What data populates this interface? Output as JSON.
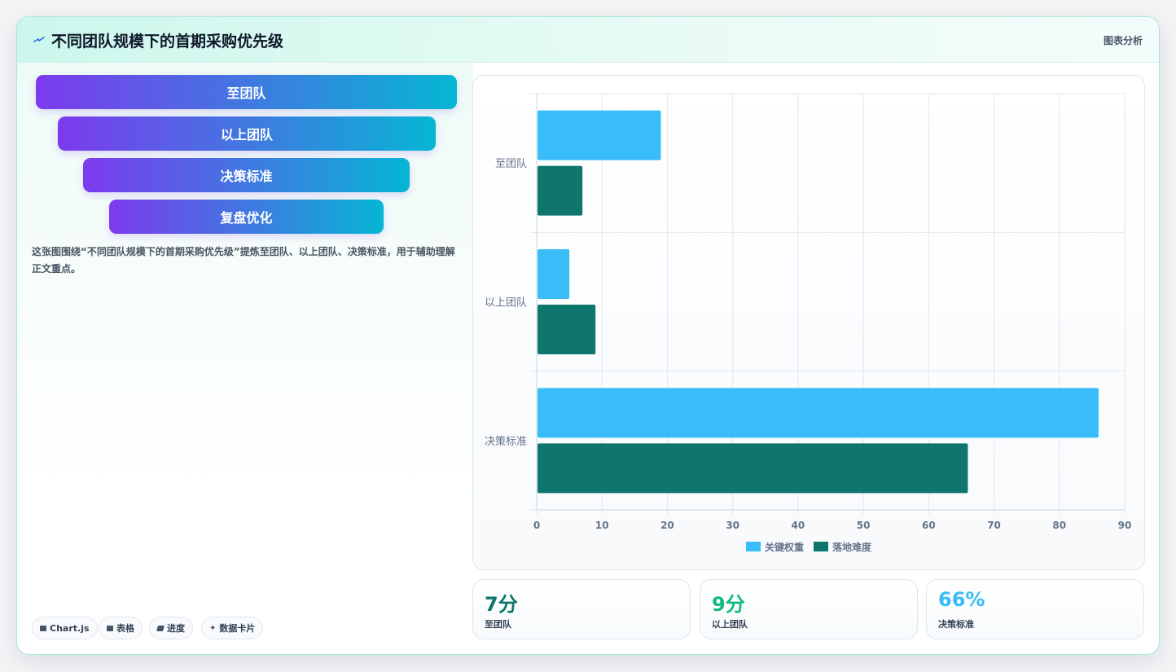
{
  "header": {
    "title": "不同团队规模下的首期采购优先级",
    "right_label": "图表分析",
    "icon": "bolt-icon"
  },
  "funnel": {
    "items": [
      "至团队",
      "以上团队",
      "决策标准",
      "复盘优化"
    ],
    "colors": {
      "start": "#7c3aed",
      "end": "#06b6d4"
    }
  },
  "description": "这张图围绕“不同团队规模下的首期采购优先级”提炼至团队、以上团队、决策标准，用于辅助理解正文重点。",
  "tags": [
    {
      "label": "Chart.js",
      "icon": "chart-icon"
    },
    {
      "label": "表格",
      "icon": "table-icon"
    },
    {
      "label": "进度",
      "icon": "progress-icon"
    },
    {
      "label": "数据卡片",
      "icon": "sparkle-icon"
    }
  ],
  "chart_data": {
    "type": "bar",
    "orientation": "horizontal",
    "categories": [
      "至团队",
      "以上团队",
      "决策标准"
    ],
    "series": [
      {
        "name": "关键权重",
        "values": [
          19,
          5,
          86
        ],
        "color": "#38bdf8"
      },
      {
        "name": "落地难度",
        "values": [
          7,
          9,
          66
        ],
        "color": "#0f766e"
      }
    ],
    "xlim": [
      0,
      90
    ],
    "x_ticks": [
      0,
      10,
      20,
      30,
      40,
      50,
      60,
      70,
      80,
      90
    ],
    "grid": true,
    "legend": "bottom"
  },
  "stats": [
    {
      "value": "7分",
      "label": "至团队",
      "color": "#0f766e"
    },
    {
      "value": "9分",
      "label": "以上团队",
      "color": "#10b981"
    },
    {
      "value": "66%",
      "label": "决策标准",
      "color": "#38bdf8"
    }
  ]
}
